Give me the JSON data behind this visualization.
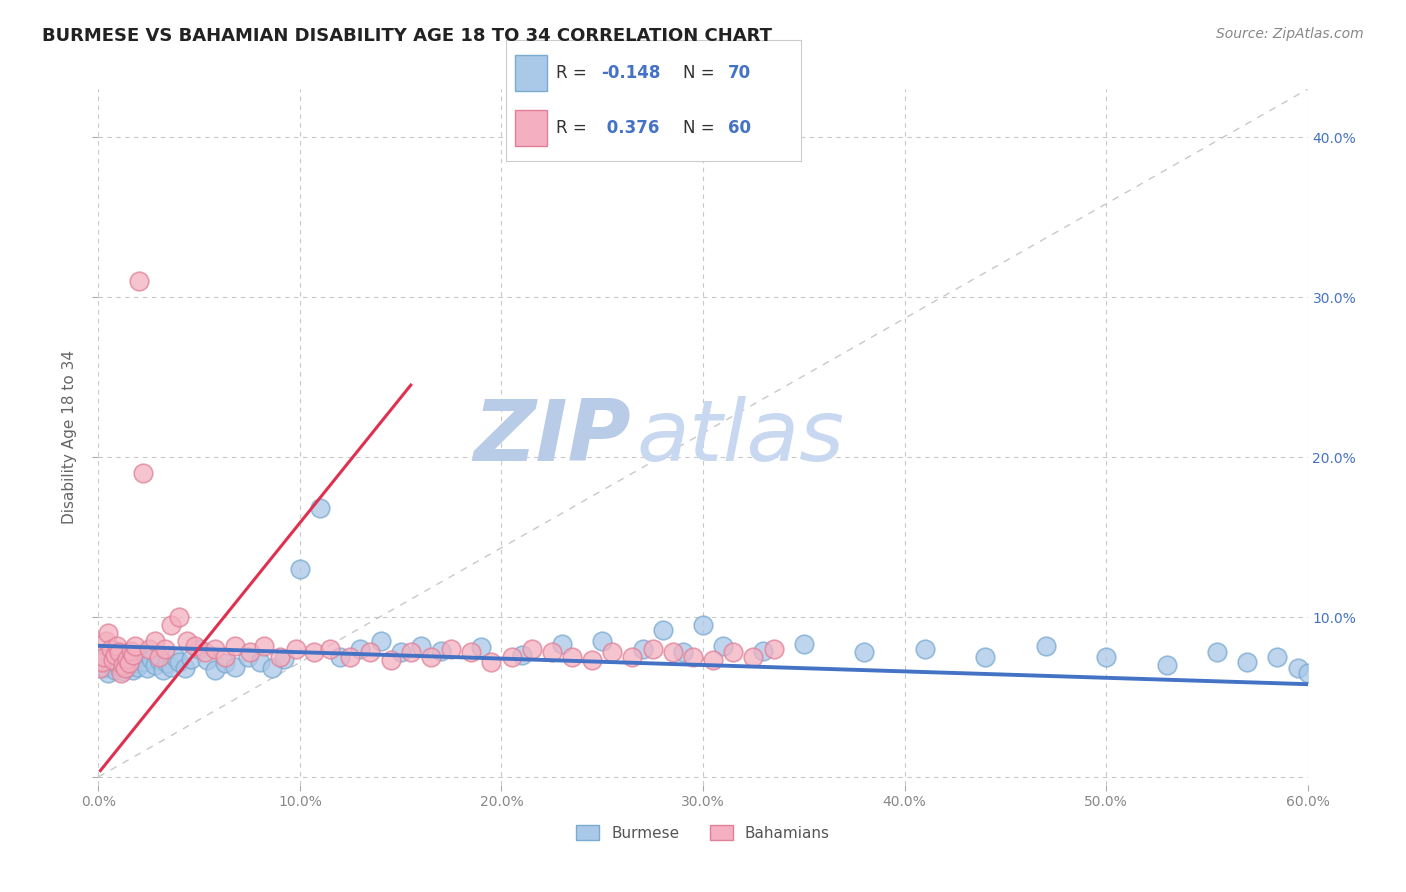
{
  "title": "BURMESE VS BAHAMIAN DISABILITY AGE 18 TO 34 CORRELATION CHART",
  "source_text": "Source: ZipAtlas.com",
  "ylabel": "Disability Age 18 to 34",
  "xlim": [
    0.0,
    0.6
  ],
  "ylim": [
    -0.005,
    0.43
  ],
  "xticks": [
    0.0,
    0.1,
    0.2,
    0.3,
    0.4,
    0.5,
    0.6
  ],
  "yticks": [
    0.0,
    0.1,
    0.2,
    0.3,
    0.4
  ],
  "xtick_labels": [
    "0.0%",
    "10.0%",
    "20.0%",
    "30.0%",
    "40.0%",
    "50.0%",
    "60.0%"
  ],
  "ytick_labels_right": [
    "40.0%",
    "30.0%",
    "20.0%",
    "10.0%",
    ""
  ],
  "burmese_color": "#aac8e8",
  "bahamian_color": "#f4b0c0",
  "burmese_edge": "#7aaad0",
  "bahamian_edge": "#e08098",
  "trend_burmese_color": "#4472c4",
  "trend_bahamian_color": "#e03050",
  "R_burmese": -0.148,
  "N_burmese": 70,
  "R_bahamian": 0.376,
  "N_bahamian": 60,
  "legend_R_color": "#4472c4",
  "legend_N_color": "#4472c4",
  "watermark_zip": "ZIP",
  "watermark_atlas": "atlas",
  "watermark_color": "#cddcf0",
  "background_color": "#ffffff",
  "grid_color": "#c8c8c8",
  "title_color": "#333333",
  "burmese_x": [
    0.002,
    0.003,
    0.004,
    0.005,
    0.006,
    0.007,
    0.008,
    0.009,
    0.01,
    0.011,
    0.012,
    0.013,
    0.014,
    0.015,
    0.016,
    0.017,
    0.018,
    0.019,
    0.02,
    0.022,
    0.024,
    0.026,
    0.028,
    0.03,
    0.032,
    0.034,
    0.036,
    0.038,
    0.04,
    0.043,
    0.046,
    0.05,
    0.054,
    0.058,
    0.063,
    0.068,
    0.074,
    0.08,
    0.086,
    0.092,
    0.1,
    0.11,
    0.12,
    0.13,
    0.14,
    0.15,
    0.16,
    0.17,
    0.19,
    0.21,
    0.23,
    0.25,
    0.27,
    0.29,
    0.31,
    0.33,
    0.35,
    0.38,
    0.41,
    0.44,
    0.47,
    0.5,
    0.53,
    0.555,
    0.57,
    0.585,
    0.595,
    0.6,
    0.28,
    0.3
  ],
  "burmese_y": [
    0.072,
    0.068,
    0.075,
    0.065,
    0.07,
    0.073,
    0.067,
    0.071,
    0.069,
    0.074,
    0.066,
    0.072,
    0.068,
    0.07,
    0.073,
    0.067,
    0.071,
    0.069,
    0.075,
    0.072,
    0.068,
    0.074,
    0.07,
    0.073,
    0.067,
    0.071,
    0.069,
    0.075,
    0.072,
    0.068,
    0.074,
    0.08,
    0.073,
    0.067,
    0.071,
    0.069,
    0.075,
    0.072,
    0.068,
    0.074,
    0.13,
    0.168,
    0.075,
    0.08,
    0.085,
    0.078,
    0.082,
    0.079,
    0.081,
    0.076,
    0.083,
    0.085,
    0.08,
    0.078,
    0.082,
    0.079,
    0.083,
    0.078,
    0.08,
    0.075,
    0.082,
    0.075,
    0.07,
    0.078,
    0.072,
    0.075,
    0.068,
    0.065,
    0.092,
    0.095
  ],
  "bahamian_x": [
    0.001,
    0.002,
    0.003,
    0.004,
    0.005,
    0.006,
    0.007,
    0.008,
    0.009,
    0.01,
    0.011,
    0.012,
    0.013,
    0.014,
    0.015,
    0.016,
    0.017,
    0.018,
    0.02,
    0.022,
    0.025,
    0.028,
    0.03,
    0.033,
    0.036,
    0.04,
    0.044,
    0.048,
    0.053,
    0.058,
    0.063,
    0.068,
    0.075,
    0.082,
    0.09,
    0.098,
    0.107,
    0.115,
    0.125,
    0.135,
    0.145,
    0.155,
    0.165,
    0.175,
    0.185,
    0.195,
    0.205,
    0.215,
    0.225,
    0.235,
    0.245,
    0.255,
    0.265,
    0.275,
    0.285,
    0.295,
    0.305,
    0.315,
    0.325,
    0.335
  ],
  "bahamian_y": [
    0.068,
    0.072,
    0.075,
    0.085,
    0.09,
    0.08,
    0.073,
    0.076,
    0.082,
    0.078,
    0.065,
    0.07,
    0.068,
    0.074,
    0.071,
    0.079,
    0.076,
    0.082,
    0.31,
    0.19,
    0.08,
    0.085,
    0.075,
    0.08,
    0.095,
    0.1,
    0.085,
    0.082,
    0.078,
    0.08,
    0.075,
    0.082,
    0.078,
    0.082,
    0.075,
    0.08,
    0.078,
    0.08,
    0.075,
    0.078,
    0.073,
    0.078,
    0.075,
    0.08,
    0.078,
    0.072,
    0.075,
    0.08,
    0.078,
    0.075,
    0.073,
    0.078,
    0.075,
    0.08,
    0.078,
    0.075,
    0.073,
    0.078,
    0.075,
    0.08
  ],
  "burmese_trend_x": [
    0.0,
    0.6
  ],
  "burmese_trend_y": [
    0.082,
    0.058
  ],
  "bahamian_trend_x": [
    0.001,
    0.155
  ],
  "bahamian_trend_y": [
    0.004,
    0.245
  ]
}
